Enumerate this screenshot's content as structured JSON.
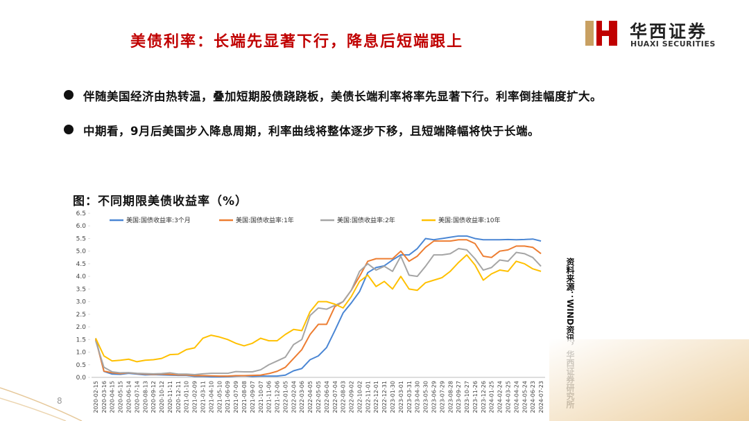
{
  "header": {
    "title": "美债利率：长端先显著下行，降息后短端跟上",
    "logo_name": "华西证券",
    "logo_en": "HUAXI SECURITIES"
  },
  "bullets": [
    "伴随美国经济由热转温，叠加短期股债跷跷板，美债长端利率将率先显著下行。利率倒挂幅度扩大。",
    "中期看，9月后美国步入降息周期，利率曲线将整体逐步下移，且短端降幅将快于长端。"
  ],
  "chart_data": {
    "type": "line",
    "title": "图：不同期限美债收益率（%）",
    "categories": [
      "2020-02-15",
      "2020-03-16",
      "2020-04-15",
      "2020-05-15",
      "2020-06-14",
      "2020-07-14",
      "2020-08-13",
      "2020-09-12",
      "2020-10-12",
      "2020-11-11",
      "2020-12-11",
      "2021-01-10",
      "2021-02-09",
      "2021-03-11",
      "2021-04-10",
      "2021-05-10",
      "2021-06-09",
      "2021-07-09",
      "2021-08-08",
      "2021-09-07",
      "2021-10-07",
      "2021-11-06",
      "2021-12-06",
      "2022-01-05",
      "2022-02-04",
      "2022-03-06",
      "2022-04-05",
      "2022-05-05",
      "2022-06-04",
      "2022-07-04",
      "2022-08-03",
      "2022-09-02",
      "2022-10-02",
      "2022-11-01",
      "2022-12-01",
      "2022-12-31",
      "2023-01-30",
      "2023-03-01",
      "2023-03-31",
      "2023-04-30",
      "2023-05-30",
      "2023-06-29",
      "2023-07-29",
      "2023-08-28",
      "2023-09-27",
      "2023-10-27",
      "2023-11-26",
      "2023-12-26",
      "2024-01-25",
      "2024-02-24",
      "2024-03-25",
      "2024-04-24",
      "2024-05-24",
      "2024-06-23",
      "2024-07-23"
    ],
    "series": [
      {
        "name": "美国:国债收益率:3个月",
        "color": "#4a86d4",
        "values": [
          1.55,
          0.24,
          0.13,
          0.12,
          0.16,
          0.13,
          0.1,
          0.11,
          0.1,
          0.09,
          0.08,
          0.08,
          0.04,
          0.04,
          0.02,
          0.02,
          0.03,
          0.05,
          0.06,
          0.04,
          0.05,
          0.05,
          0.05,
          0.09,
          0.26,
          0.35,
          0.7,
          0.85,
          1.18,
          1.85,
          2.55,
          2.95,
          3.4,
          4.15,
          4.35,
          4.42,
          4.65,
          4.85,
          4.85,
          5.1,
          5.5,
          5.45,
          5.5,
          5.55,
          5.6,
          5.6,
          5.5,
          5.45,
          5.45,
          5.45,
          5.46,
          5.45,
          5.46,
          5.48,
          5.4
        ]
      },
      {
        "name": "美国:国债收益率:1年",
        "color": "#ed7d31",
        "values": [
          1.5,
          0.25,
          0.18,
          0.15,
          0.18,
          0.15,
          0.13,
          0.12,
          0.13,
          0.12,
          0.1,
          0.1,
          0.07,
          0.07,
          0.06,
          0.05,
          0.05,
          0.07,
          0.07,
          0.08,
          0.09,
          0.15,
          0.24,
          0.4,
          0.75,
          1.1,
          1.7,
          2.1,
          2.1,
          2.8,
          3.0,
          3.45,
          4.0,
          4.6,
          4.7,
          4.7,
          4.7,
          5.0,
          4.6,
          4.8,
          5.15,
          5.4,
          5.4,
          5.4,
          5.45,
          5.45,
          5.3,
          4.8,
          4.75,
          5.0,
          5.05,
          5.2,
          5.2,
          5.15,
          4.9
        ]
      },
      {
        "name": "美国:国债收益率:2年",
        "color": "#a5a5a5",
        "values": [
          1.45,
          0.4,
          0.22,
          0.18,
          0.19,
          0.16,
          0.15,
          0.14,
          0.15,
          0.18,
          0.13,
          0.13,
          0.11,
          0.14,
          0.16,
          0.16,
          0.16,
          0.23,
          0.22,
          0.22,
          0.3,
          0.5,
          0.65,
          0.8,
          1.3,
          1.5,
          2.45,
          2.75,
          2.7,
          2.85,
          3.0,
          3.45,
          4.2,
          4.5,
          4.25,
          4.4,
          4.2,
          4.8,
          4.05,
          4.0,
          4.4,
          4.85,
          4.85,
          4.9,
          5.1,
          5.05,
          4.7,
          4.25,
          4.35,
          4.65,
          4.6,
          4.95,
          4.9,
          4.75,
          4.4
        ]
      },
      {
        "name": "美国:国债收益率:10年",
        "color": "#ffc000",
        "values": [
          1.55,
          0.85,
          0.65,
          0.68,
          0.72,
          0.62,
          0.68,
          0.7,
          0.75,
          0.9,
          0.92,
          1.1,
          1.17,
          1.55,
          1.67,
          1.6,
          1.5,
          1.35,
          1.25,
          1.35,
          1.55,
          1.45,
          1.45,
          1.7,
          1.9,
          1.85,
          2.6,
          3.0,
          3.0,
          2.9,
          2.75,
          3.2,
          3.8,
          4.05,
          3.6,
          3.8,
          3.5,
          4.0,
          3.5,
          3.45,
          3.75,
          3.85,
          3.95,
          4.2,
          4.55,
          4.85,
          4.45,
          3.85,
          4.1,
          4.25,
          4.2,
          4.6,
          4.5,
          4.3,
          4.2
        ]
      }
    ],
    "ylim": [
      0,
      6.5
    ],
    "yticks": [
      {
        "value": 0,
        "label": "0.0"
      },
      0.5,
      {
        "value": 1,
        "label": "1.0"
      },
      1.5,
      {
        "value": 2,
        "label": "2.0"
      },
      2.5,
      {
        "value": 3,
        "label": "3.0"
      },
      3.5,
      {
        "value": 4,
        "label": "4.0"
      },
      4.5,
      {
        "value": 5,
        "label": "5.0"
      },
      5.5,
      {
        "value": 6,
        "label": "6.0"
      },
      6.5
    ],
    "legend": "top"
  },
  "source": "资料来源：WIND资讯，华西证券研究所",
  "page_number": "8"
}
